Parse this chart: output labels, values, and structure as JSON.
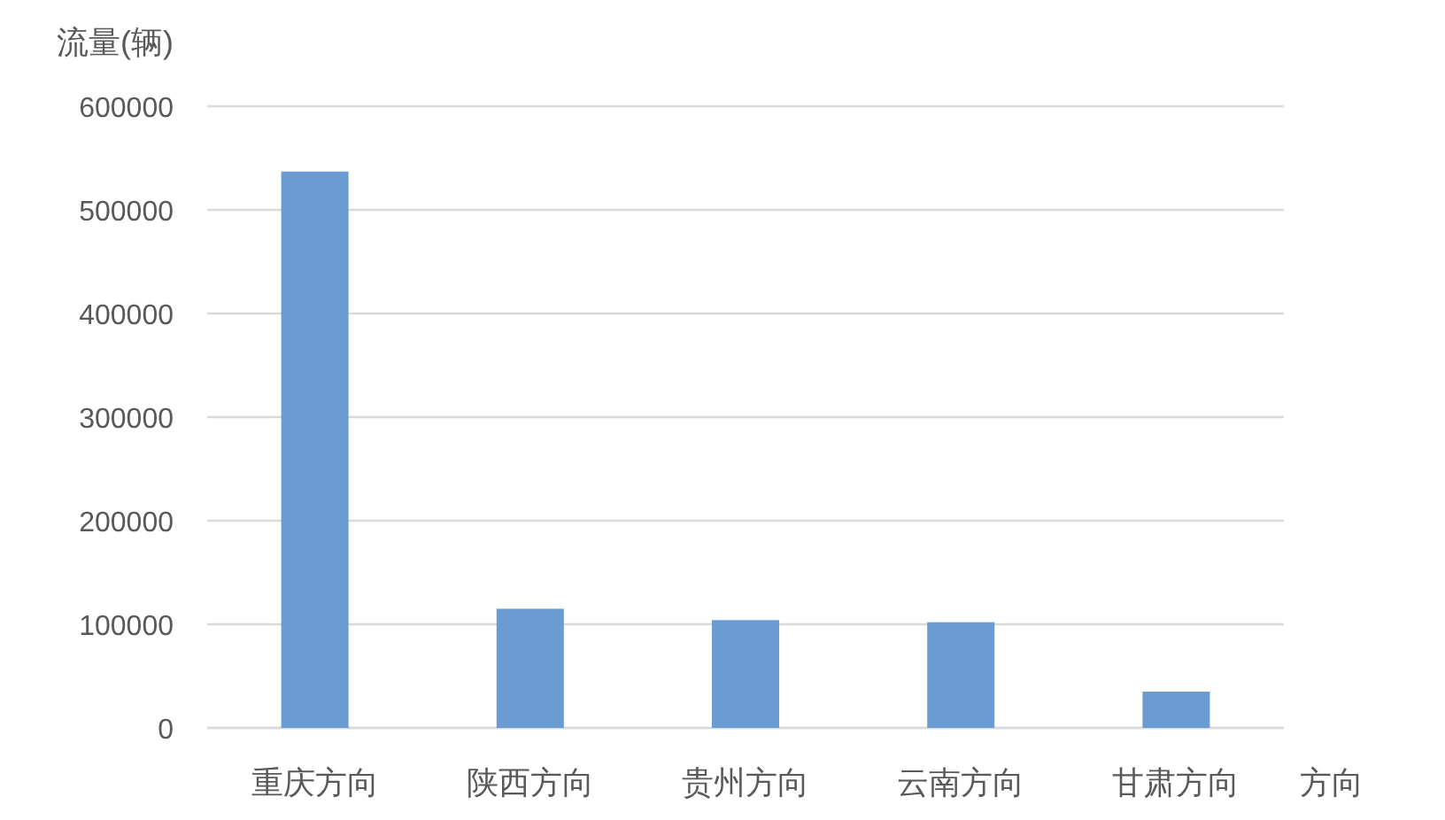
{
  "chart_data": {
    "type": "bar",
    "ylabel": "流量(辆)",
    "xlabel": "方向",
    "categories": [
      "重庆方向",
      "陕西方向",
      "贵州方向",
      "云南方向",
      "甘肃方向"
    ],
    "values": [
      537000,
      115000,
      104000,
      102000,
      35000
    ],
    "color": "#6a9bd1",
    "ylim": [
      0,
      600000
    ],
    "yticks": [
      0,
      100000,
      200000,
      300000,
      400000,
      500000,
      600000
    ],
    "grid": "y"
  }
}
